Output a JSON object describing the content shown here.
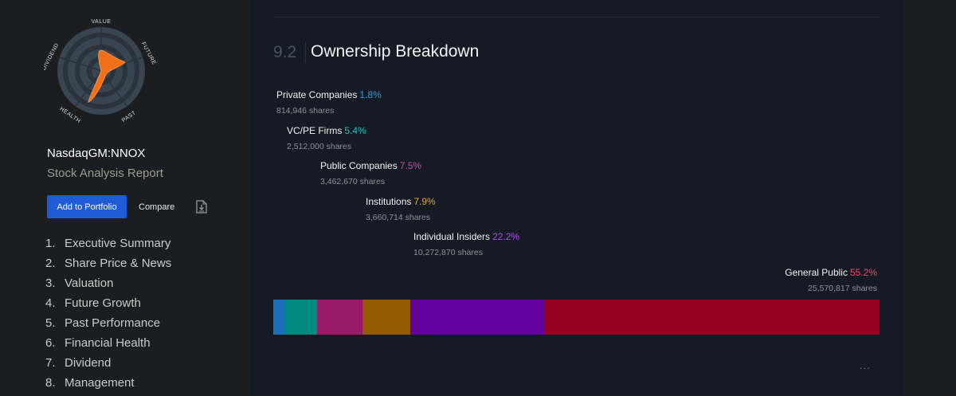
{
  "snowflake": {
    "axes": [
      "VALUE",
      "FUTURE",
      "PAST",
      "HEALTH",
      "DIVIDEND"
    ],
    "fill_color": "#f26f1a"
  },
  "company": {
    "ticker": "NasdaqGM:NNOX",
    "report_title": "Stock Analysis Report"
  },
  "actions": {
    "add_portfolio_label": "Add to Portfolio",
    "compare_label": "Compare",
    "download_icon": "download-icon"
  },
  "toc": [
    {
      "num": "1.",
      "label": "Executive Summary"
    },
    {
      "num": "2.",
      "label": "Share Price & News"
    },
    {
      "num": "3.",
      "label": "Valuation"
    },
    {
      "num": "4.",
      "label": "Future Growth"
    },
    {
      "num": "5.",
      "label": "Past Performance"
    },
    {
      "num": "6.",
      "label": "Financial Health"
    },
    {
      "num": "7.",
      "label": "Dividend"
    },
    {
      "num": "8.",
      "label": "Management"
    }
  ],
  "section": {
    "number": "9.2",
    "title": "Ownership Breakdown"
  },
  "chart_data": {
    "type": "bar",
    "stacked": true,
    "categories": [
      "Private Companies",
      "VC/PE Firms",
      "Public Companies",
      "Institutions",
      "Individual Insiders",
      "General Public"
    ],
    "values": [
      1.8,
      5.4,
      7.5,
      7.9,
      22.2,
      55.2
    ],
    "percent_labels": [
      "1.8%",
      "5.4%",
      "7.5%",
      "7.9%",
      "22.2%",
      "55.2%"
    ],
    "shares": [
      "814,946 shares",
      "2,512,000 shares",
      "3,462,670 shares",
      "3,660,714 shares",
      "10,272,870 shares",
      "25,570,817 shares"
    ],
    "label_colors": [
      "#2f9be0",
      "#22c5ba",
      "#d44aa4",
      "#e4a23c",
      "#b24ae5",
      "#f04a6d"
    ],
    "bar_colors": [
      "#1c6fb8",
      "#008a80",
      "#9a1a6a",
      "#955b00",
      "#64009d",
      "#960022"
    ]
  },
  "more_label": "..."
}
